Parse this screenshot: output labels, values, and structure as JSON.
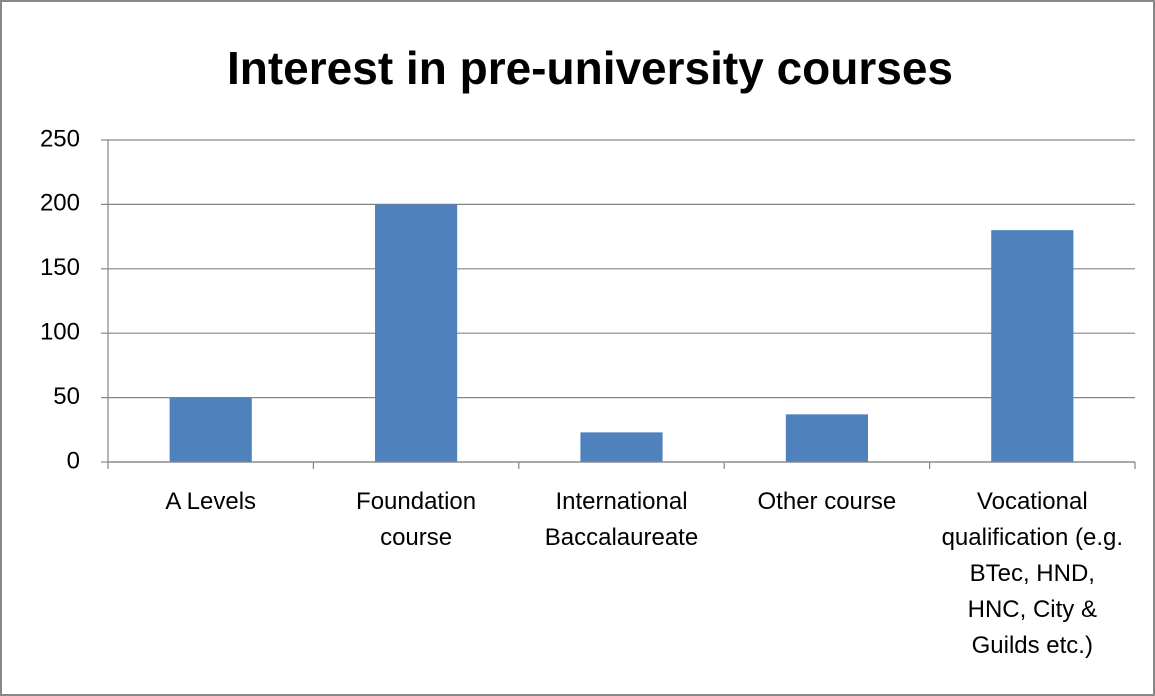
{
  "chart_data": {
    "type": "bar",
    "title": "Interest in pre-university courses",
    "categories": [
      "A Levels",
      "Foundation course",
      "International Baccalaureate",
      "Other course",
      "Vocational qualification (e.g. BTec, HND, HNC, City & Guilds etc.)"
    ],
    "values": [
      50,
      200,
      23,
      37,
      180
    ],
    "color": "#4f81bd",
    "ylim": [
      0,
      250
    ],
    "yticks": [
      0,
      50,
      100,
      150,
      200,
      250
    ],
    "grid": true
  }
}
